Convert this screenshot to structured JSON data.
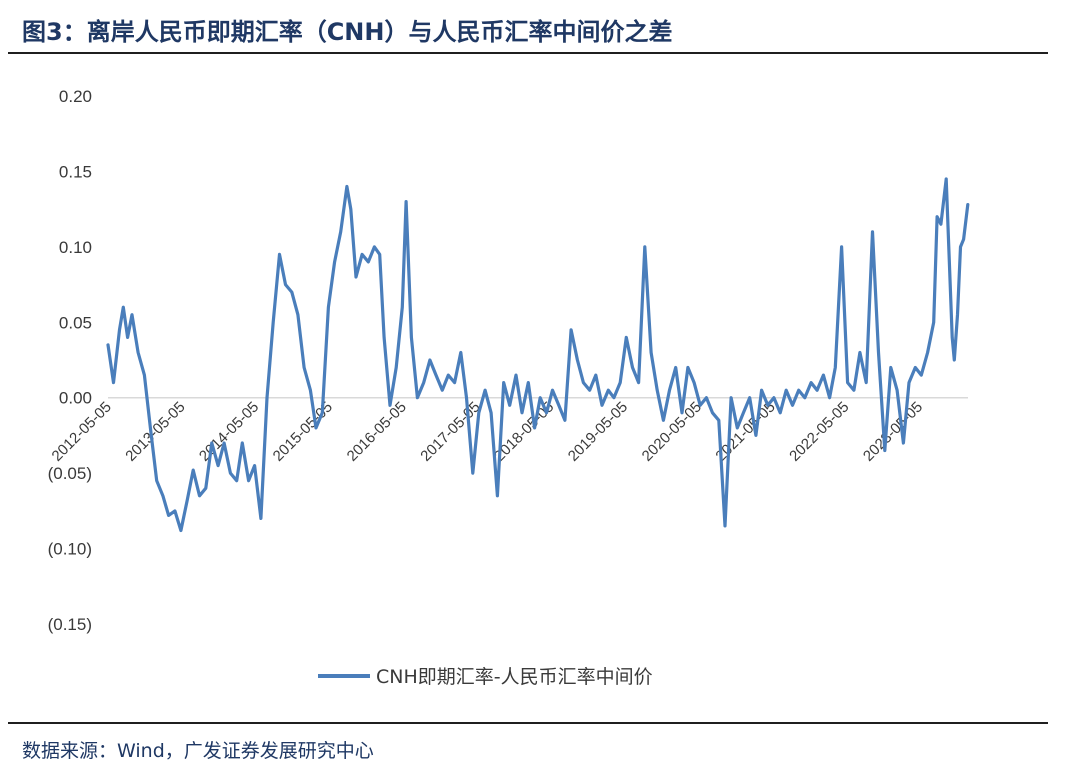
{
  "header": {
    "title": "图3：离岸人民币即期汇率（CNH）与人民币汇率中间价之差"
  },
  "footer": {
    "source": "数据来源：Wind，广发证券发展研究中心"
  },
  "colors": {
    "series": "#4a7ebb",
    "text": "#1f3864",
    "axis": "#d9d9d9"
  },
  "chart_data": {
    "type": "line",
    "title": "",
    "xlabel": "",
    "ylabel": "",
    "ylim": [
      -0.15,
      0.2
    ],
    "y_ticks": [
      0.2,
      0.15,
      0.1,
      0.05,
      0.0,
      -0.05,
      -0.1,
      -0.15
    ],
    "y_tick_labels": [
      "0.20",
      "0.15",
      "0.10",
      "0.05",
      "0.00",
      "(0.05)",
      "(0.10)",
      "(0.15)"
    ],
    "x_tick_labels": [
      "2012-05-05",
      "2013-05-05",
      "2014-05-05",
      "2015-05-05",
      "2016-05-05",
      "2017-05-05",
      "2018-05-05",
      "2019-05-05",
      "2020-05-05",
      "2021-05-05",
      "2022-05-05",
      "2023-05-05"
    ],
    "xlim": [
      "2012-05-05",
      "2024-01-01"
    ],
    "grid": false,
    "legend": "bottom",
    "series": [
      {
        "name": "CNH即期汇率-人民币汇率中间价",
        "color": "#4a7ebb",
        "points": [
          [
            "2012-05-05",
            0.035
          ],
          [
            "2012-06-01",
            0.01
          ],
          [
            "2012-07-01",
            0.045
          ],
          [
            "2012-07-20",
            0.06
          ],
          [
            "2012-08-10",
            0.04
          ],
          [
            "2012-09-01",
            0.055
          ],
          [
            "2012-10-01",
            0.03
          ],
          [
            "2012-11-01",
            0.015
          ],
          [
            "2012-12-01",
            -0.02
          ],
          [
            "2013-01-01",
            -0.055
          ],
          [
            "2013-02-01",
            -0.065
          ],
          [
            "2013-03-01",
            -0.078
          ],
          [
            "2013-04-01",
            -0.075
          ],
          [
            "2013-05-01",
            -0.088
          ],
          [
            "2013-06-01",
            -0.068
          ],
          [
            "2013-07-01",
            -0.048
          ],
          [
            "2013-08-01",
            -0.065
          ],
          [
            "2013-09-01",
            -0.06
          ],
          [
            "2013-10-01",
            -0.03
          ],
          [
            "2013-11-01",
            -0.045
          ],
          [
            "2013-12-01",
            -0.03
          ],
          [
            "2014-01-01",
            -0.05
          ],
          [
            "2014-02-01",
            -0.055
          ],
          [
            "2014-03-01",
            -0.03
          ],
          [
            "2014-04-01",
            -0.055
          ],
          [
            "2014-05-01",
            -0.045
          ],
          [
            "2014-06-01",
            -0.08
          ],
          [
            "2014-07-01",
            0.0
          ],
          [
            "2014-08-01",
            0.05
          ],
          [
            "2014-09-01",
            0.095
          ],
          [
            "2014-10-01",
            0.075
          ],
          [
            "2014-11-01",
            0.07
          ],
          [
            "2014-12-01",
            0.055
          ],
          [
            "2015-01-01",
            0.02
          ],
          [
            "2015-02-01",
            0.005
          ],
          [
            "2015-03-01",
            -0.02
          ],
          [
            "2015-04-01",
            -0.01
          ],
          [
            "2015-05-01",
            0.06
          ],
          [
            "2015-06-01",
            0.09
          ],
          [
            "2015-07-01",
            0.11
          ],
          [
            "2015-08-01",
            0.14
          ],
          [
            "2015-08-20",
            0.125
          ],
          [
            "2015-09-15",
            0.08
          ],
          [
            "2015-10-15",
            0.095
          ],
          [
            "2015-11-15",
            0.09
          ],
          [
            "2015-12-15",
            0.1
          ],
          [
            "2016-01-10",
            0.095
          ],
          [
            "2016-02-01",
            0.04
          ],
          [
            "2016-03-01",
            -0.005
          ],
          [
            "2016-04-01",
            0.02
          ],
          [
            "2016-05-01",
            0.06
          ],
          [
            "2016-05-20",
            0.13
          ],
          [
            "2016-06-15",
            0.04
          ],
          [
            "2016-07-15",
            0.0
          ],
          [
            "2016-08-15",
            0.01
          ],
          [
            "2016-09-15",
            0.025
          ],
          [
            "2016-10-15",
            0.015
          ],
          [
            "2016-11-15",
            0.005
          ],
          [
            "2016-12-15",
            0.015
          ],
          [
            "2017-01-15",
            0.01
          ],
          [
            "2017-02-15",
            0.03
          ],
          [
            "2017-03-15",
            0.0
          ],
          [
            "2017-04-15",
            -0.05
          ],
          [
            "2017-05-15",
            -0.01
          ],
          [
            "2017-06-15",
            0.005
          ],
          [
            "2017-07-15",
            -0.01
          ],
          [
            "2017-08-15",
            -0.065
          ],
          [
            "2017-09-15",
            0.01
          ],
          [
            "2017-10-15",
            -0.005
          ],
          [
            "2017-11-15",
            0.015
          ],
          [
            "2017-12-15",
            -0.01
          ],
          [
            "2018-01-15",
            0.01
          ],
          [
            "2018-02-15",
            -0.02
          ],
          [
            "2018-03-15",
            0.0
          ],
          [
            "2018-04-15",
            -0.01
          ],
          [
            "2018-05-15",
            0.005
          ],
          [
            "2018-06-15",
            -0.005
          ],
          [
            "2018-07-15",
            -0.015
          ],
          [
            "2018-08-15",
            0.045
          ],
          [
            "2018-09-15",
            0.025
          ],
          [
            "2018-10-15",
            0.01
          ],
          [
            "2018-11-15",
            0.005
          ],
          [
            "2018-12-15",
            0.015
          ],
          [
            "2019-01-15",
            -0.005
          ],
          [
            "2019-02-15",
            0.005
          ],
          [
            "2019-03-15",
            0.0
          ],
          [
            "2019-04-15",
            0.01
          ],
          [
            "2019-05-15",
            0.04
          ],
          [
            "2019-06-15",
            0.02
          ],
          [
            "2019-07-15",
            0.01
          ],
          [
            "2019-08-15",
            0.1
          ],
          [
            "2019-09-15",
            0.03
          ],
          [
            "2019-10-15",
            0.005
          ],
          [
            "2019-11-15",
            -0.015
          ],
          [
            "2019-12-15",
            0.005
          ],
          [
            "2020-01-15",
            0.02
          ],
          [
            "2020-02-15",
            -0.01
          ],
          [
            "2020-03-15",
            0.02
          ],
          [
            "2020-04-15",
            0.01
          ],
          [
            "2020-05-15",
            -0.005
          ],
          [
            "2020-06-15",
            0.0
          ],
          [
            "2020-07-15",
            -0.01
          ],
          [
            "2020-08-15",
            -0.015
          ],
          [
            "2020-09-15",
            -0.085
          ],
          [
            "2020-10-15",
            0.0
          ],
          [
            "2020-11-15",
            -0.02
          ],
          [
            "2020-12-15",
            -0.01
          ],
          [
            "2021-01-15",
            0.0
          ],
          [
            "2021-02-15",
            -0.025
          ],
          [
            "2021-03-15",
            0.005
          ],
          [
            "2021-04-15",
            -0.005
          ],
          [
            "2021-05-15",
            0.0
          ],
          [
            "2021-06-15",
            -0.01
          ],
          [
            "2021-07-15",
            0.005
          ],
          [
            "2021-08-15",
            -0.005
          ],
          [
            "2021-09-15",
            0.005
          ],
          [
            "2021-10-15",
            0.0
          ],
          [
            "2021-11-15",
            0.01
          ],
          [
            "2021-12-15",
            0.005
          ],
          [
            "2022-01-15",
            0.015
          ],
          [
            "2022-02-15",
            0.0
          ],
          [
            "2022-03-15",
            0.02
          ],
          [
            "2022-04-15",
            0.1
          ],
          [
            "2022-05-15",
            0.01
          ],
          [
            "2022-06-15",
            0.005
          ],
          [
            "2022-07-15",
            0.03
          ],
          [
            "2022-08-15",
            0.01
          ],
          [
            "2022-09-15",
            0.11
          ],
          [
            "2022-10-15",
            0.03
          ],
          [
            "2022-11-15",
            -0.035
          ],
          [
            "2022-12-15",
            0.02
          ],
          [
            "2023-01-15",
            0.005
          ],
          [
            "2023-02-15",
            -0.03
          ],
          [
            "2023-03-15",
            0.01
          ],
          [
            "2023-04-15",
            0.02
          ],
          [
            "2023-05-15",
            0.015
          ],
          [
            "2023-06-15",
            0.03
          ],
          [
            "2023-07-15",
            0.05
          ],
          [
            "2023-08-01",
            0.12
          ],
          [
            "2023-08-20",
            0.115
          ],
          [
            "2023-09-15",
            0.145
          ],
          [
            "2023-10-15",
            0.04
          ],
          [
            "2023-10-25",
            0.025
          ],
          [
            "2023-11-10",
            0.055
          ],
          [
            "2023-11-25",
            0.1
          ],
          [
            "2023-12-10",
            0.105
          ],
          [
            "2023-12-31",
            0.128
          ]
        ]
      }
    ]
  }
}
